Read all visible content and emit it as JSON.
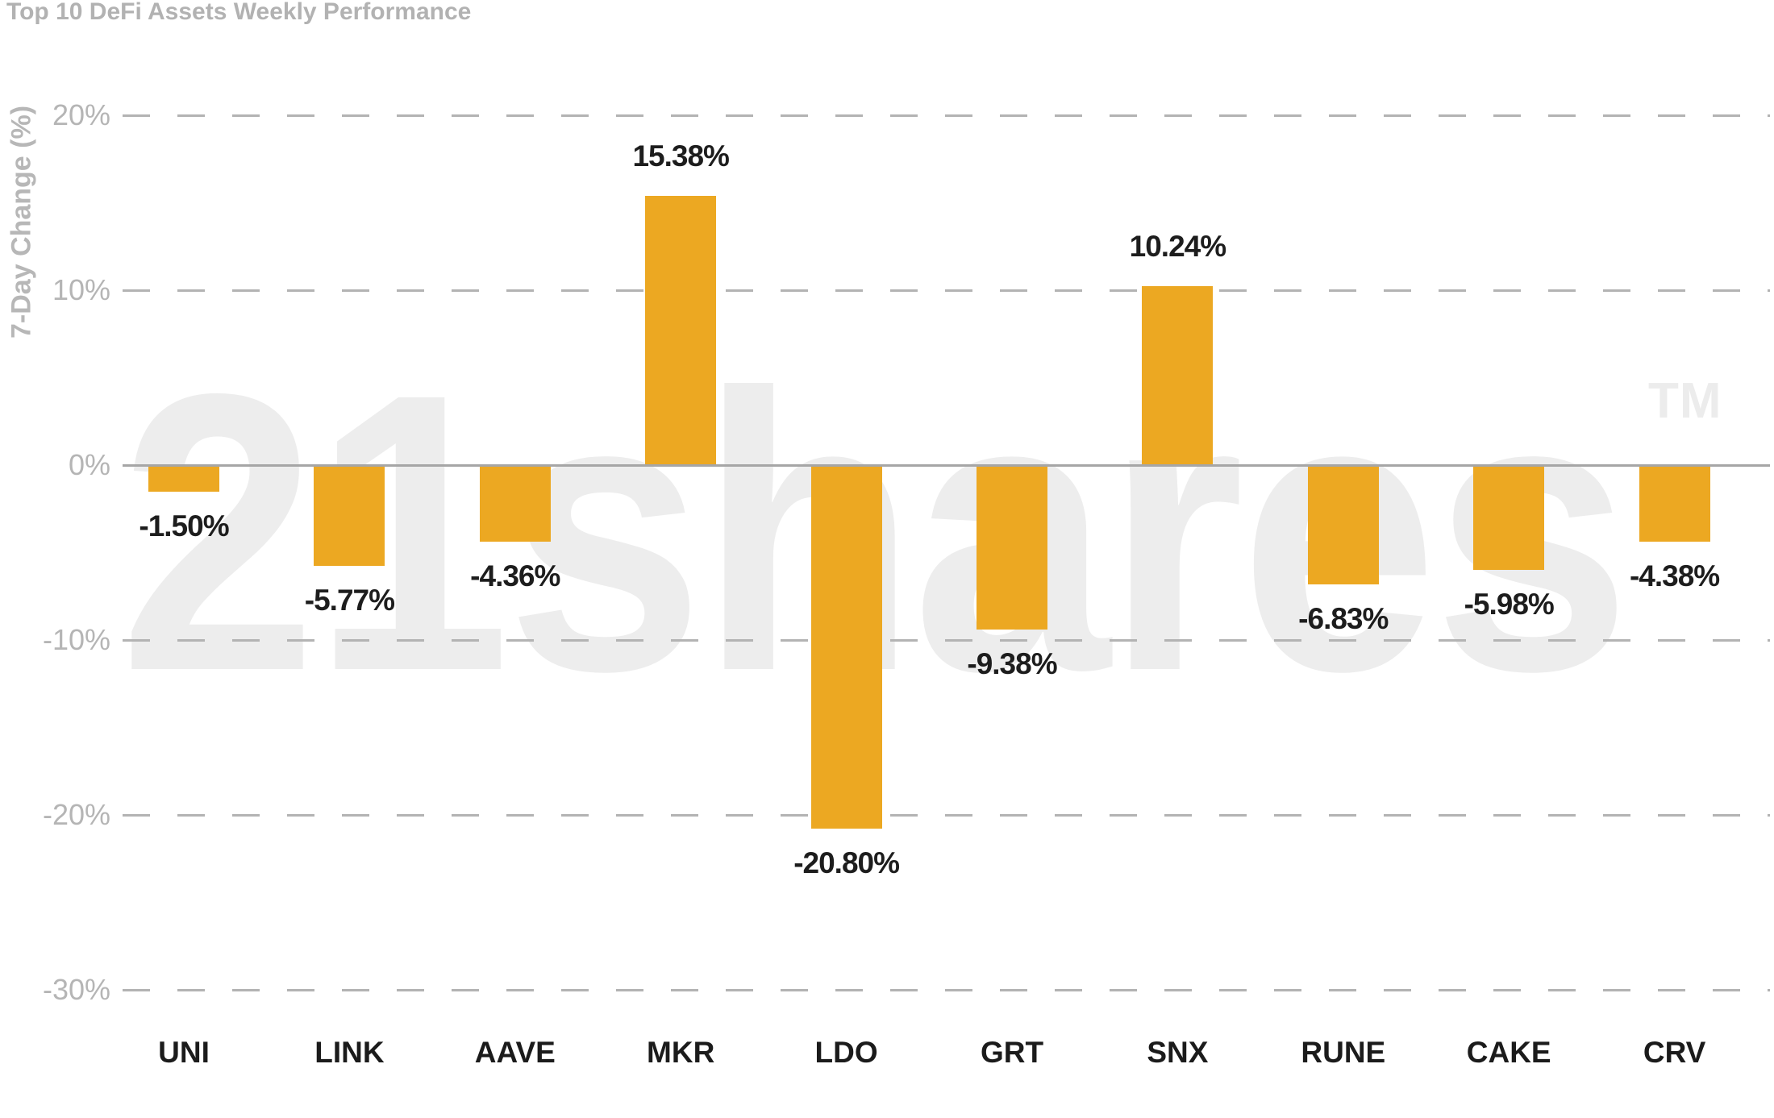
{
  "header": {
    "title": "Top 10 DeFi Assets Weekly Performance"
  },
  "watermark": {
    "text": "21shares",
    "tm": "TM",
    "color": "#ededed"
  },
  "palette": {
    "bar": "#eca822",
    "grid": "#b3b3b3",
    "zero_line": "#a6a6a6",
    "tick_text": "#b5b5b5",
    "title_text": "#b2b2b2",
    "value_text": "#1d1d1d"
  },
  "chart_data": {
    "type": "bar",
    "title": "Top 10 DeFi Assets Weekly Performance",
    "xlabel": "",
    "ylabel": "7-Day Change (%)",
    "categories": [
      "UNI",
      "LINK",
      "AAVE",
      "MKR",
      "LDO",
      "GRT",
      "SNX",
      "RUNE",
      "CAKE",
      "CRV"
    ],
    "values": [
      -1.5,
      -5.77,
      -4.36,
      15.38,
      -20.8,
      -9.38,
      10.24,
      -6.83,
      -5.98,
      -4.38
    ],
    "value_labels": [
      "-1.50%",
      "-5.77%",
      "-4.36%",
      "15.38%",
      "-20.80%",
      "-9.38%",
      "10.24%",
      "-6.83%",
      "-5.98%",
      "-4.38%"
    ],
    "y_ticks": [
      {
        "value": 20,
        "label": "20%"
      },
      {
        "value": 10,
        "label": "10%"
      },
      {
        "value": 0,
        "label": "0%"
      },
      {
        "value": -10,
        "label": "-10%"
      },
      {
        "value": -20,
        "label": "-20%"
      },
      {
        "value": -30,
        "label": "-30%"
      }
    ],
    "ylim": [
      -30,
      20
    ],
    "bar_color": "#eca822",
    "grid": "horizontal-dashed",
    "zero_line": "solid",
    "legend": "none",
    "watermark": "21shares TM"
  }
}
